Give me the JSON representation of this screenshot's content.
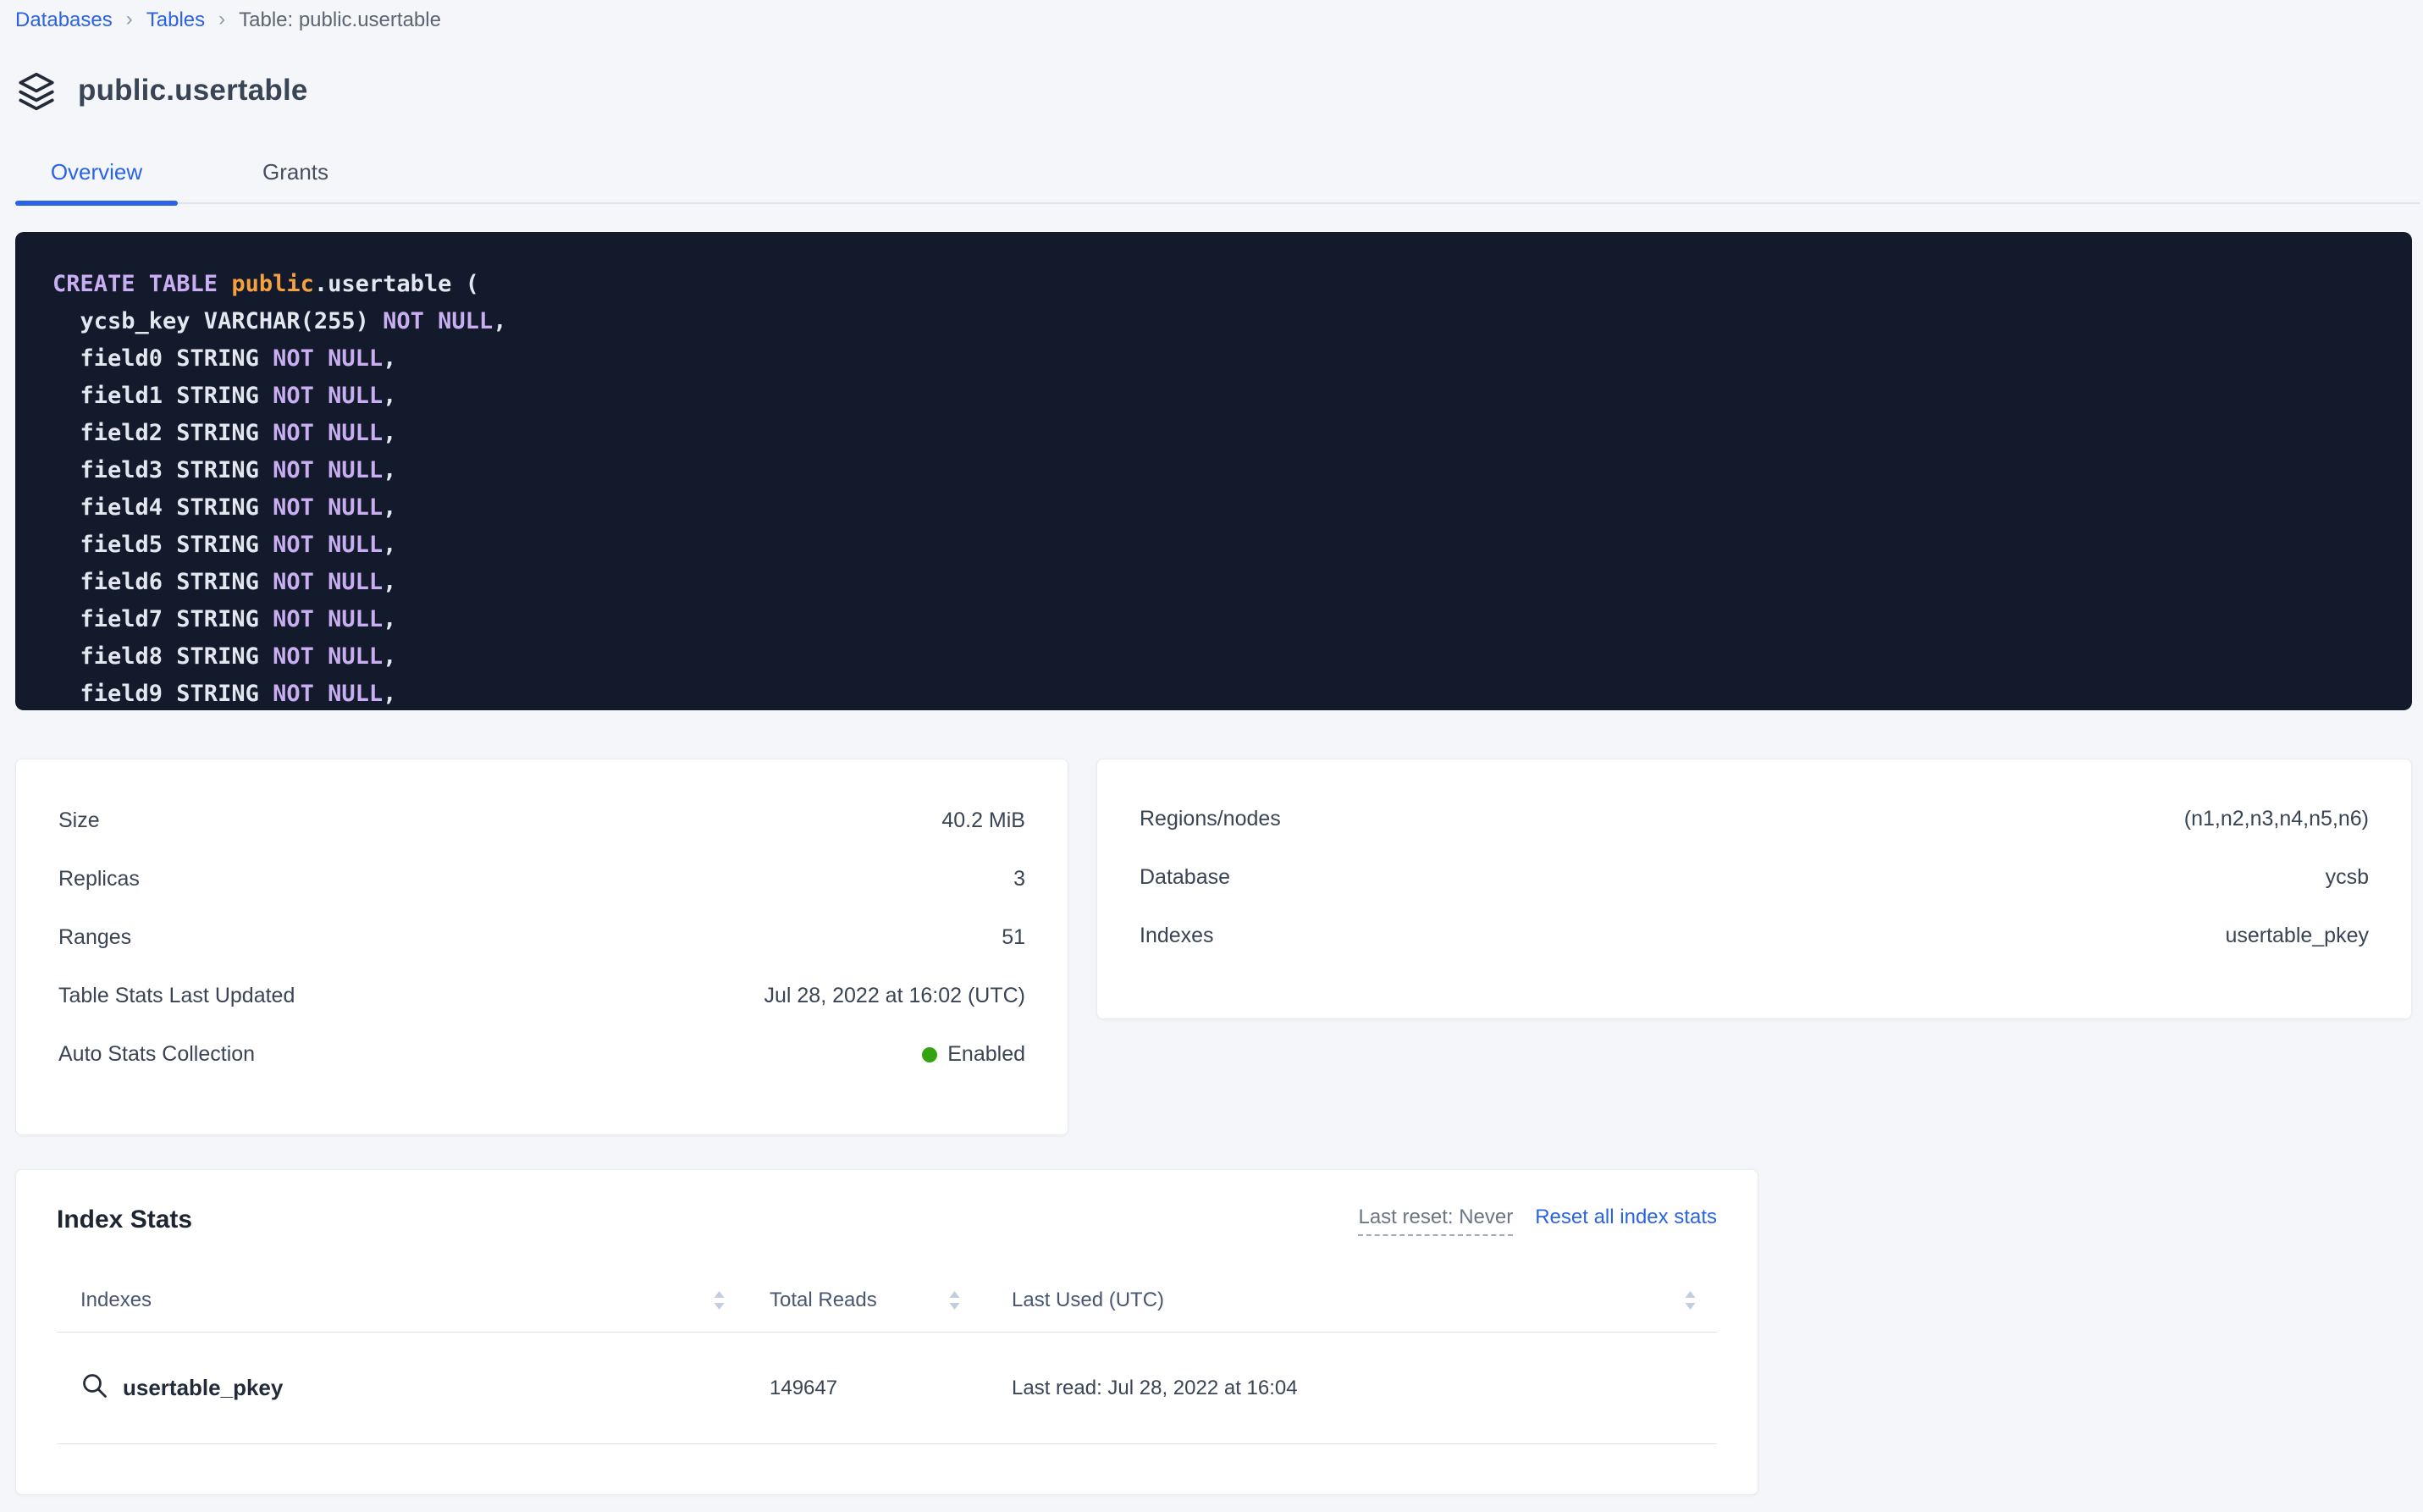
{
  "breadcrumb": {
    "separator": "›",
    "items": [
      {
        "label": "Databases",
        "type": "link"
      },
      {
        "label": "Tables",
        "type": "link"
      },
      {
        "label": "Table: public.usertable",
        "type": "current"
      }
    ]
  },
  "header": {
    "title": "public.usertable",
    "icon": "table-layers-icon"
  },
  "tabs": [
    {
      "label": "Overview",
      "active": true
    },
    {
      "label": "Grants",
      "active": false
    }
  ],
  "sql_ddl": {
    "lines": [
      [
        {
          "text": "CREATE TABLE ",
          "type": "keyword"
        },
        {
          "text": "public",
          "type": "schema"
        },
        {
          "text": ".usertable (",
          "type": "plain"
        }
      ],
      [
        {
          "text": "  ycsb_key VARCHAR(255) ",
          "type": "plain"
        },
        {
          "text": "NOT NULL",
          "type": "keyword"
        },
        {
          "text": ",",
          "type": "plain"
        }
      ],
      [
        {
          "text": "  field0 STRING ",
          "type": "plain"
        },
        {
          "text": "NOT NULL",
          "type": "keyword"
        },
        {
          "text": ",",
          "type": "plain"
        }
      ],
      [
        {
          "text": "  field1 STRING ",
          "type": "plain"
        },
        {
          "text": "NOT NULL",
          "type": "keyword"
        },
        {
          "text": ",",
          "type": "plain"
        }
      ],
      [
        {
          "text": "  field2 STRING ",
          "type": "plain"
        },
        {
          "text": "NOT NULL",
          "type": "keyword"
        },
        {
          "text": ",",
          "type": "plain"
        }
      ],
      [
        {
          "text": "  field3 STRING ",
          "type": "plain"
        },
        {
          "text": "NOT NULL",
          "type": "keyword"
        },
        {
          "text": ",",
          "type": "plain"
        }
      ],
      [
        {
          "text": "  field4 STRING ",
          "type": "plain"
        },
        {
          "text": "NOT NULL",
          "type": "keyword"
        },
        {
          "text": ",",
          "type": "plain"
        }
      ],
      [
        {
          "text": "  field5 STRING ",
          "type": "plain"
        },
        {
          "text": "NOT NULL",
          "type": "keyword"
        },
        {
          "text": ",",
          "type": "plain"
        }
      ],
      [
        {
          "text": "  field6 STRING ",
          "type": "plain"
        },
        {
          "text": "NOT NULL",
          "type": "keyword"
        },
        {
          "text": ",",
          "type": "plain"
        }
      ],
      [
        {
          "text": "  field7 STRING ",
          "type": "plain"
        },
        {
          "text": "NOT NULL",
          "type": "keyword"
        },
        {
          "text": ",",
          "type": "plain"
        }
      ],
      [
        {
          "text": "  field8 STRING ",
          "type": "plain"
        },
        {
          "text": "NOT NULL",
          "type": "keyword"
        },
        {
          "text": ",",
          "type": "plain"
        }
      ],
      [
        {
          "text": "  field9 STRING ",
          "type": "plain"
        },
        {
          "text": "NOT NULL",
          "type": "keyword"
        },
        {
          "text": ",",
          "type": "plain"
        }
      ]
    ]
  },
  "details": {
    "left": [
      {
        "label": "Size",
        "value": "40.2 MiB"
      },
      {
        "label": "Replicas",
        "value": "3"
      },
      {
        "label": "Ranges",
        "value": "51"
      },
      {
        "label": "Table Stats Last Updated",
        "value": "Jul 28, 2022 at 16:02 (UTC)"
      },
      {
        "label": "Auto Stats Collection",
        "value": "Enabled",
        "status_dot": true
      }
    ],
    "right": [
      {
        "label": "Regions/nodes",
        "value": "(n1,n2,n3,n4,n5,n6)"
      },
      {
        "label": "Database",
        "value": "ycsb"
      },
      {
        "label": "Indexes",
        "value": "usertable_pkey"
      }
    ]
  },
  "index_stats": {
    "title": "Index Stats",
    "last_reset": "Last reset: Never",
    "reset_link": "Reset all index stats",
    "columns": [
      {
        "label": "Indexes",
        "sortable": true
      },
      {
        "label": "Total Reads",
        "sortable": true
      },
      {
        "label": "Last Used (UTC)",
        "sortable": true
      }
    ],
    "rows": [
      {
        "index_name": "usertable_pkey",
        "icon": "magnifier-icon",
        "total_reads": "149647",
        "last_used": "Last read: Jul 28, 2022 at 16:04"
      }
    ]
  },
  "colors": {
    "accent_blue": "#2a63e4",
    "status_green": "#33a310",
    "code_background": "#131a2c",
    "code_keyword": "#c9aef2",
    "code_schema": "#f5a13d",
    "code_plain": "#e3e7f0",
    "page_background": "#f4f6fa"
  }
}
